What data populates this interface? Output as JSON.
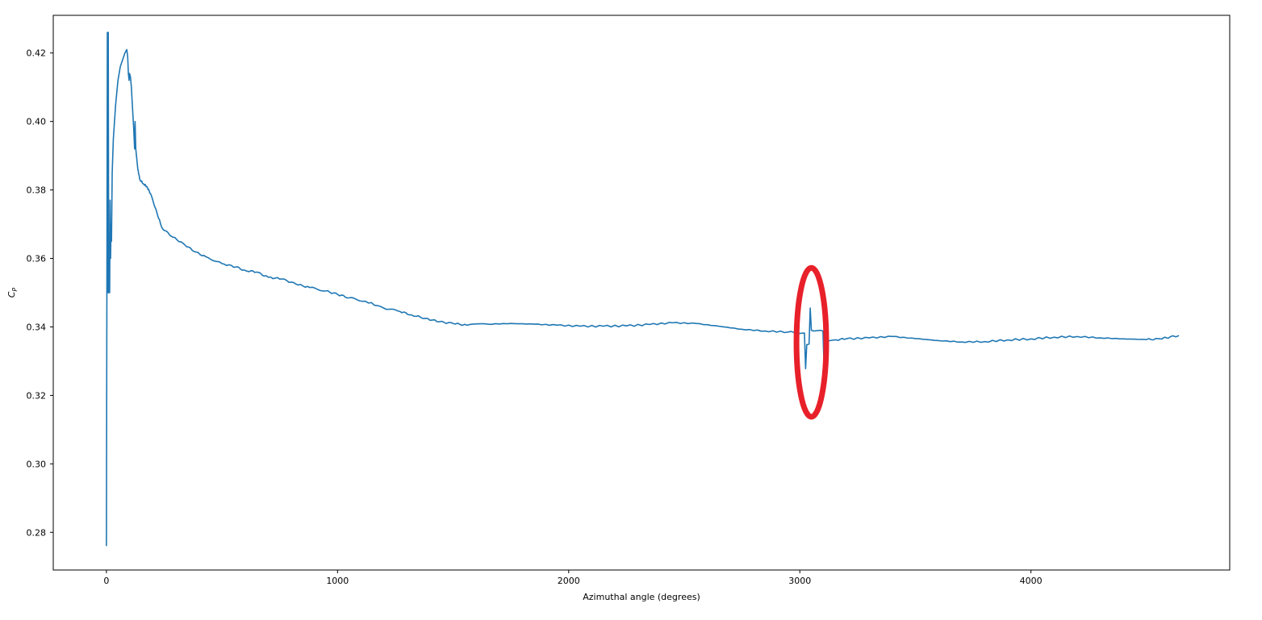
{
  "chart_data": {
    "type": "line",
    "title": "",
    "xlabel": "Azimuthal angle (degrees)",
    "ylabel_main": "C",
    "ylabel_sub": "P",
    "xlim": [
      -230,
      4860
    ],
    "ylim": [
      0.269,
      0.431
    ],
    "grid": false,
    "legend": "none",
    "xticks": [
      0,
      1000,
      2000,
      3000,
      4000
    ],
    "xtick_labels": [
      "0",
      "1000",
      "2000",
      "3000",
      "4000"
    ],
    "yticks": [
      0.28,
      0.3,
      0.32,
      0.34,
      0.36,
      0.38,
      0.4,
      0.42
    ],
    "ytick_labels": [
      "0.28",
      "0.30",
      "0.32",
      "0.34",
      "0.36",
      "0.38",
      "0.40",
      "0.42"
    ],
    "line_color": "#1f77b4",
    "highlight_color": "#e8202a",
    "highlight": {
      "x": 3050,
      "y": 0.3355,
      "rx": 230,
      "ry": 0.0145
    },
    "series": [
      {
        "points": [
          [
            0,
            0.276
          ],
          [
            2,
            0.35
          ],
          [
            4,
            0.426
          ],
          [
            6,
            0.35
          ],
          [
            8,
            0.426
          ],
          [
            10,
            0.35
          ],
          [
            14,
            0.35
          ],
          [
            16,
            0.377
          ],
          [
            18,
            0.36
          ],
          [
            20,
            0.37
          ],
          [
            22,
            0.365
          ],
          [
            25,
            0.385
          ],
          [
            30,
            0.395
          ],
          [
            40,
            0.405
          ],
          [
            50,
            0.412
          ],
          [
            60,
            0.416
          ],
          [
            70,
            0.418
          ],
          [
            80,
            0.42
          ],
          [
            88,
            0.421
          ],
          [
            92,
            0.419
          ],
          [
            95,
            0.414
          ],
          [
            98,
            0.412
          ],
          [
            100,
            0.414
          ],
          [
            104,
            0.413
          ],
          [
            108,
            0.41
          ],
          [
            112,
            0.405
          ],
          [
            118,
            0.398
          ],
          [
            122,
            0.392
          ],
          [
            124,
            0.4
          ],
          [
            127,
            0.392
          ],
          [
            130,
            0.39
          ],
          [
            136,
            0.386
          ],
          [
            145,
            0.383
          ],
          [
            160,
            0.3818
          ],
          [
            175,
            0.381
          ],
          [
            190,
            0.379
          ],
          [
            210,
            0.375
          ],
          [
            240,
            0.369
          ],
          [
            280,
            0.3665
          ],
          [
            330,
            0.3645
          ],
          [
            380,
            0.362
          ],
          [
            430,
            0.3605
          ],
          [
            500,
            0.3585
          ],
          [
            560,
            0.3575
          ],
          [
            600,
            0.3565
          ],
          [
            650,
            0.356
          ],
          [
            700,
            0.3545
          ],
          [
            760,
            0.354
          ],
          [
            820,
            0.3525
          ],
          [
            880,
            0.3515
          ],
          [
            950,
            0.3505
          ],
          [
            1000,
            0.3495
          ],
          [
            1050,
            0.3485
          ],
          [
            1120,
            0.3475
          ],
          [
            1200,
            0.3455
          ],
          [
            1270,
            0.3445
          ],
          [
            1320,
            0.3435
          ],
          [
            1380,
            0.3425
          ],
          [
            1440,
            0.3415
          ],
          [
            1500,
            0.341
          ],
          [
            1560,
            0.3405
          ],
          [
            1650,
            0.3408
          ],
          [
            1750,
            0.341
          ],
          [
            1850,
            0.3408
          ],
          [
            1950,
            0.3405
          ],
          [
            2050,
            0.3402
          ],
          [
            2150,
            0.3402
          ],
          [
            2250,
            0.3403
          ],
          [
            2350,
            0.3407
          ],
          [
            2450,
            0.3412
          ],
          [
            2550,
            0.341
          ],
          [
            2650,
            0.3402
          ],
          [
            2750,
            0.3393
          ],
          [
            2850,
            0.3388
          ],
          [
            2950,
            0.3385
          ],
          [
            3020,
            0.3382
          ],
          [
            3025,
            0.3278
          ],
          [
            3030,
            0.3348
          ],
          [
            3040,
            0.335
          ],
          [
            3045,
            0.3455
          ],
          [
            3050,
            0.339
          ],
          [
            3060,
            0.3388
          ],
          [
            3090,
            0.339
          ],
          [
            3100,
            0.3388
          ],
          [
            3105,
            0.3282
          ],
          [
            3108,
            0.3358
          ],
          [
            3150,
            0.3362
          ],
          [
            3200,
            0.3365
          ],
          [
            3300,
            0.3368
          ],
          [
            3400,
            0.3372
          ],
          [
            3500,
            0.3366
          ],
          [
            3600,
            0.336
          ],
          [
            3700,
            0.3356
          ],
          [
            3800,
            0.3357
          ],
          [
            3900,
            0.3362
          ],
          [
            4000,
            0.3365
          ],
          [
            4100,
            0.337
          ],
          [
            4200,
            0.3372
          ],
          [
            4300,
            0.3368
          ],
          [
            4400,
            0.3365
          ],
          [
            4500,
            0.3363
          ],
          [
            4560,
            0.3365
          ],
          [
            4600,
            0.337
          ],
          [
            4640,
            0.3375
          ]
        ]
      }
    ]
  }
}
